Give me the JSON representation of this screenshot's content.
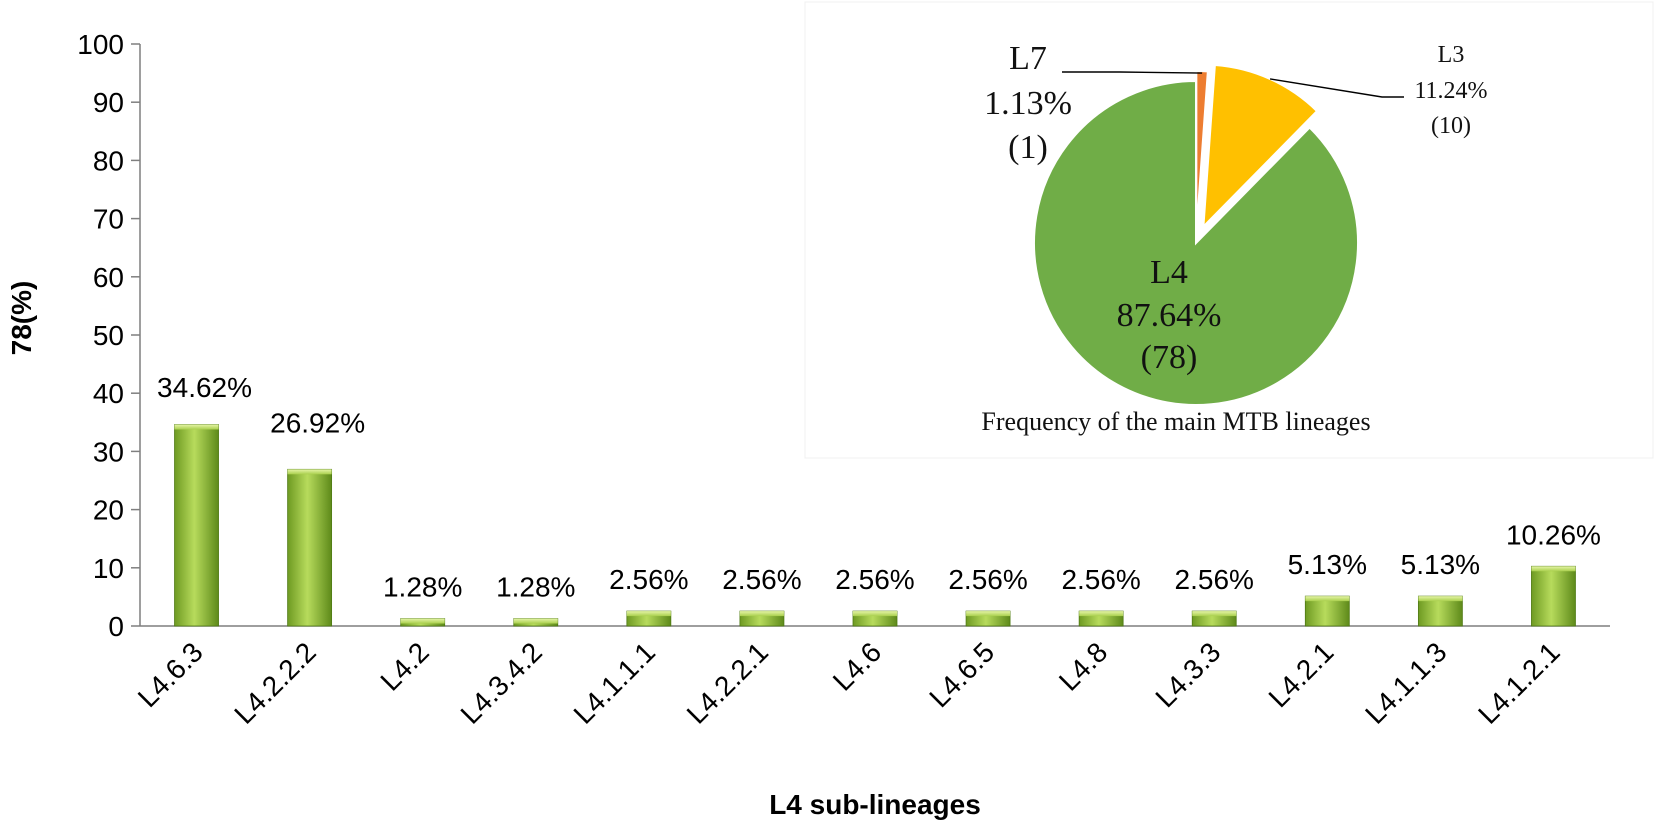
{
  "chart_data": [
    {
      "type": "bar",
      "xlabel": "L4 sub-lineages",
      "ylabel": "78(%)",
      "ylim": [
        0,
        100
      ],
      "yticks": [
        "0",
        "10",
        "20",
        "30",
        "40",
        "50",
        "60",
        "70",
        "80",
        "90",
        "100"
      ],
      "grid": false,
      "categories": [
        "L4.6.3",
        "L4.2.2.2",
        "L4.2",
        "L4.3.4.2",
        "L4.1.1.1",
        "L4.2.2.1",
        "L4.6",
        "L4.6.5",
        "L4.8",
        "L4.3.3",
        "L4.2.1",
        "L4.1.1.3",
        "L4.1.2.1"
      ],
      "values": [
        34.62,
        26.92,
        1.28,
        1.28,
        2.56,
        2.56,
        2.56,
        2.56,
        2.56,
        2.56,
        5.13,
        5.13,
        10.26
      ],
      "data_labels": [
        "34.62%",
        "26.92%",
        "1.28%",
        "1.28%",
        "2.56%",
        "2.56%",
        "2.56%",
        "2.56%",
        "2.56%",
        "2.56%",
        "5.13%",
        "5.13%",
        "10.26%"
      ],
      "bar_color": "#8DB83A"
    },
    {
      "type": "pie",
      "title": "Frequency of the main MTB lineages",
      "slices": [
        {
          "name": "L7",
          "value": 1.13,
          "percent_label": "1.13%",
          "count_label": "(1)",
          "color": "#ED7D31"
        },
        {
          "name": "L3",
          "value": 11.24,
          "percent_label": "11.24%",
          "count_label": "(10)",
          "color": "#FFC000"
        },
        {
          "name": "L4",
          "value": 87.64,
          "percent_label": "87.64%",
          "count_label": "(78)",
          "color": "#70AD47"
        }
      ]
    }
  ]
}
